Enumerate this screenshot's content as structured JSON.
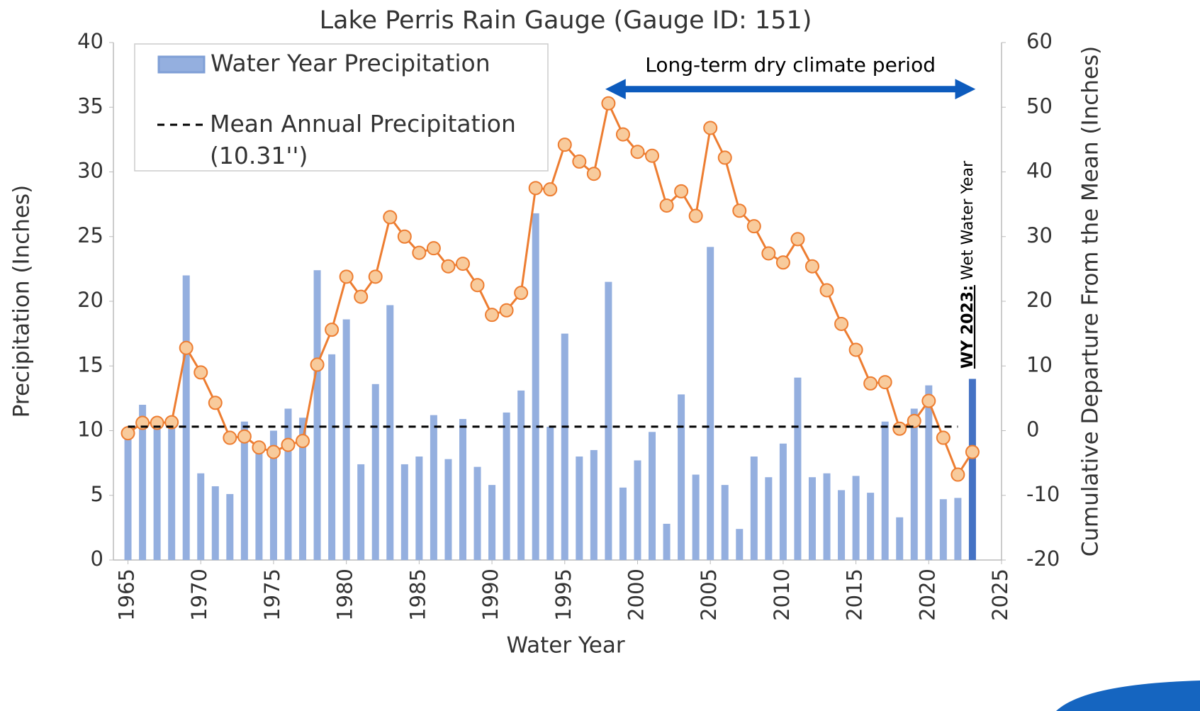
{
  "chart_data": {
    "type": "bar",
    "title": "Lake Perris Rain Gauge (Gauge ID: 151)",
    "x_label": "Water Year",
    "y_label": "Precipitation (Inches)",
    "y2_label": "Cumulative Departure From the Mean (Inches)",
    "x": [
      1965,
      1966,
      1967,
      1968,
      1969,
      1970,
      1971,
      1972,
      1973,
      1974,
      1975,
      1976,
      1977,
      1978,
      1979,
      1980,
      1981,
      1982,
      1983,
      1984,
      1985,
      1986,
      1987,
      1988,
      1989,
      1990,
      1991,
      1992,
      1993,
      1994,
      1995,
      1996,
      1997,
      1998,
      1999,
      2000,
      2001,
      2002,
      2003,
      2004,
      2005,
      2006,
      2007,
      2008,
      2009,
      2010,
      2011,
      2012,
      2013,
      2014,
      2015,
      2016,
      2017,
      2018,
      2019,
      2020,
      2021,
      2022,
      2023
    ],
    "series": [
      {
        "name": "Water Year Precipitation",
        "type": "bar",
        "color": "#94afdf",
        "highlight_x": 2023,
        "highlight_color": "#4472c4",
        "values": [
          9.9,
          12,
          10.5,
          10.7,
          22,
          6.7,
          5.7,
          5.1,
          10.7,
          9,
          10,
          11.7,
          11,
          22.4,
          15.9,
          18.6,
          7.4,
          13.6,
          19.7,
          7.4,
          8,
          11.2,
          7.8,
          10.9,
          7.2,
          5.8,
          11.4,
          13.1,
          26.8,
          10.3,
          17.5,
          8,
          8.5,
          21.5,
          5.6,
          7.7,
          9.9,
          2.8,
          12.8,
          6.6,
          24.2,
          5.8,
          2.4,
          8,
          6.4,
          9,
          14.1,
          6.4,
          6.7,
          5.4,
          6.5,
          5.2,
          10.7,
          3.3,
          11.7,
          13.5,
          4.7,
          4.8,
          14
        ]
      },
      {
        "type": "line",
        "axis": "y2",
        "color": "#ed7d31",
        "marker_color": "#f8cb9c",
        "values": [
          -0.4,
          1.2,
          1.2,
          1.3,
          12.8,
          9,
          4.3,
          -1.1,
          -0.9,
          -2.6,
          -3.3,
          -2.2,
          -1.6,
          10.2,
          15.6,
          23.8,
          20.7,
          23.8,
          33,
          30,
          27.5,
          28.2,
          25.4,
          25.8,
          22.5,
          17.9,
          18.6,
          21.3,
          37.5,
          37.3,
          44.2,
          41.6,
          39.7,
          50.6,
          45.8,
          43.1,
          42.5,
          34.8,
          37,
          33.2,
          46.8,
          42.2,
          34,
          31.6,
          27.4,
          26,
          29.6,
          25.4,
          21.7,
          16.5,
          12.5,
          7.3,
          7.5,
          0.3,
          1.5,
          4.6,
          -1.1,
          -6.8,
          -3.3
        ]
      },
      {
        "name": "Mean Annual Precipitation (10.31'')",
        "type": "dashed",
        "color": "#000000",
        "value": 10.31,
        "x": [
          1965,
          2022
        ]
      }
    ],
    "xlim": [
      1964,
      2025
    ],
    "xticks": [
      1965,
      1970,
      1975,
      1980,
      1985,
      1990,
      1995,
      2000,
      2005,
      2010,
      2015,
      2020,
      2025
    ],
    "ylim": [
      0,
      40
    ],
    "yticks": [
      0,
      5,
      10,
      15,
      20,
      25,
      30,
      35,
      40
    ],
    "y2lim": [
      -20,
      60
    ],
    "y2ticks": [
      -20,
      -10,
      0,
      10,
      20,
      30,
      40,
      50,
      60
    ],
    "legend": "top-left",
    "annotations": [
      {
        "text": "Long-term dry climate period",
        "x": [
          1998,
          2023
        ],
        "y2": 52.8,
        "color": "#0d5bbd"
      },
      {
        "text_bold": "WY 2023:",
        "text": "Wet Water Year",
        "x": 2023
      }
    ]
  }
}
